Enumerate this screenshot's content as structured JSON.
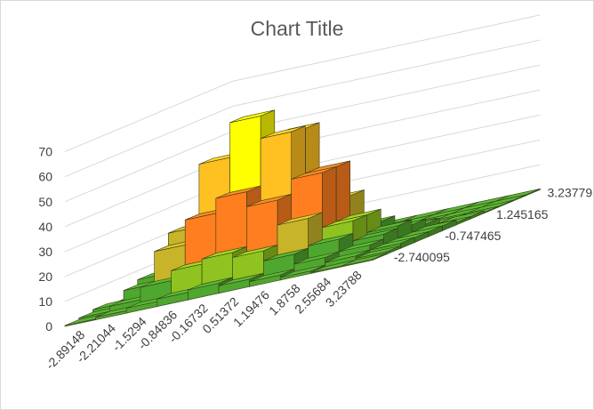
{
  "chart_data": {
    "type": "bar",
    "subtype": "3d-column",
    "title": "Chart Title",
    "xlabel": "",
    "ylabel": "",
    "zlim": [
      0,
      70
    ],
    "z_ticks": [
      "0",
      "10",
      "20",
      "30",
      "40",
      "50",
      "60",
      "70"
    ],
    "x_categories": [
      "-2.89148",
      "-2.21044",
      "-1.5294",
      "-0.84836",
      "-0.16732",
      "0.51372",
      "1.19476",
      "1.8758",
      "2.55684",
      "3.23788"
    ],
    "depth_labels": [
      "-2.740095",
      "-0.747465",
      "1.245165",
      "3.237795"
    ],
    "grid": true,
    "legend": "none",
    "values": [
      [
        0,
        1,
        2,
        1,
        1,
        1,
        0,
        0,
        0,
        0,
        0,
        0
      ],
      [
        1,
        3,
        7,
        9,
        7,
        3,
        1,
        1,
        0,
        0,
        0,
        0
      ],
      [
        2,
        8,
        20,
        25,
        16,
        6,
        2,
        1,
        0,
        0,
        0,
        0
      ],
      [
        3,
        12,
        30,
        50,
        38,
        17,
        5,
        2,
        0,
        0,
        0,
        0
      ],
      [
        4,
        14,
        36,
        64,
        52,
        26,
        8,
        3,
        1,
        0,
        0,
        0
      ],
      [
        3,
        12,
        30,
        55,
        54,
        28,
        9,
        3,
        1,
        0,
        0,
        0
      ],
      [
        2,
        8,
        20,
        36,
        36,
        22,
        8,
        3,
        1,
        0,
        0,
        0
      ],
      [
        1,
        4,
        9,
        14,
        14,
        9,
        5,
        2,
        1,
        0,
        0,
        0
      ],
      [
        0,
        2,
        4,
        6,
        7,
        5,
        3,
        1,
        0,
        0,
        0,
        0
      ],
      [
        0,
        1,
        2,
        2,
        2,
        2,
        1,
        1,
        0,
        0,
        0,
        0
      ]
    ],
    "color_bands": [
      {
        "min": 0,
        "max": 10,
        "color": "#4ea72e"
      },
      {
        "min": 10,
        "max": 20,
        "color": "#8fc31f"
      },
      {
        "min": 20,
        "max": 30,
        "color": "#c8b428"
      },
      {
        "min": 30,
        "max": 40,
        "color": "#ff7e1f"
      },
      {
        "min": 40,
        "max": 50,
        "color": "#e9641c"
      },
      {
        "min": 50,
        "max": 60,
        "color": "#ffc021"
      },
      {
        "min": 60,
        "max": 70,
        "color": "#ffff00"
      }
    ]
  }
}
